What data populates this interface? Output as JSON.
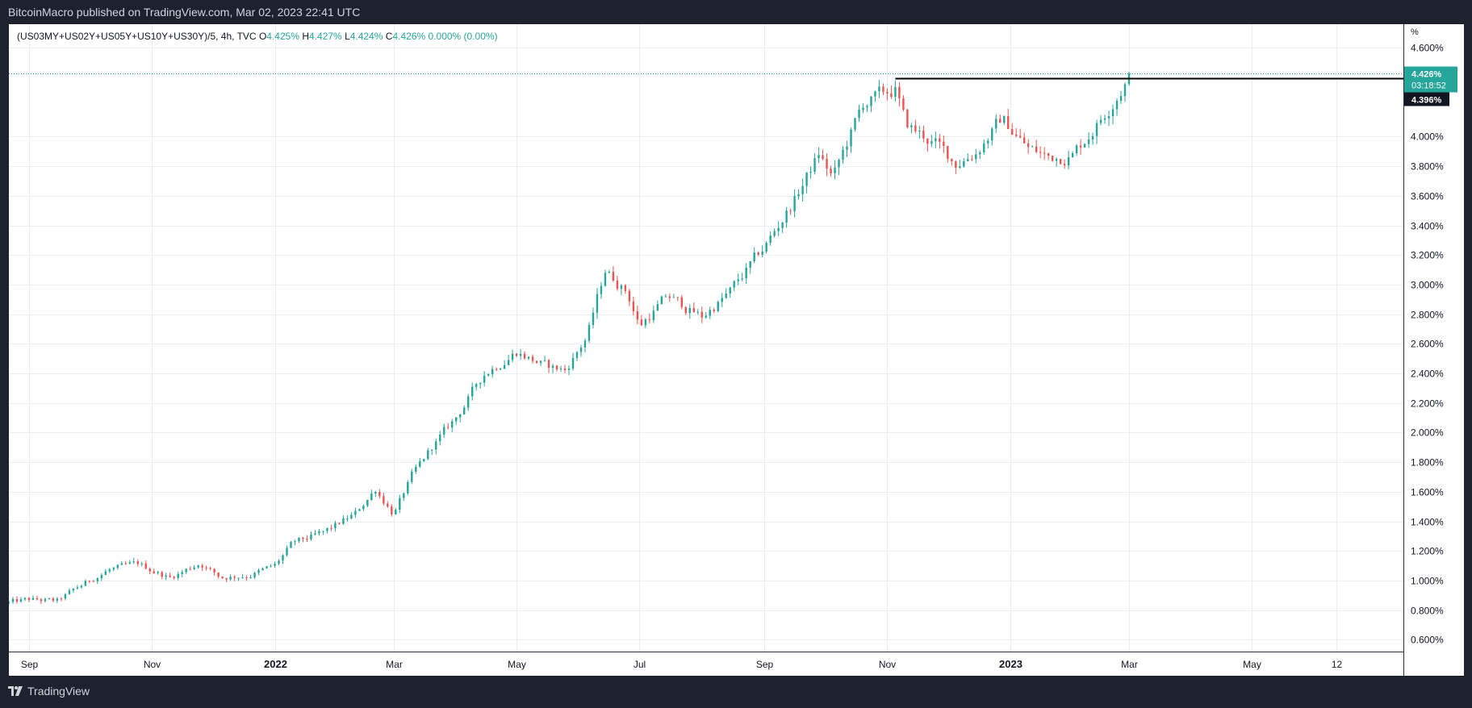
{
  "header": {
    "published_text": "BitcoinMacro published on TradingView.com, Mar 02, 2023 22:41 UTC"
  },
  "legend": {
    "symbol": "(US03MY+US02Y+US05Y+US10Y+US30Y)/5, 4h, TVC",
    "open_label": "O",
    "open_value": "4.425%",
    "high_label": "H",
    "high_value": "4.427%",
    "low_label": "L",
    "low_value": "4.424%",
    "close_label": "C",
    "close_value": "4.426%",
    "change_value": "0.000% (0.00%)"
  },
  "price_scale": {
    "unit": "%",
    "last_price_label": "4.426%",
    "countdown_label": "03:18:52",
    "level_label": "4.396%"
  },
  "footer": {
    "brand": "TradingView"
  },
  "colors": {
    "up": "#26a69a",
    "down": "#ef5350",
    "accent": "#26a69a",
    "grid": "#e9eef3",
    "level_line": "#000000"
  },
  "chart_data": {
    "type": "candlestick",
    "unit": "%",
    "x_ticks": [
      "Sep",
      "Nov",
      "2022",
      "Mar",
      "May",
      "Jul",
      "Sep",
      "Nov",
      "2023",
      "Mar",
      "May",
      "12"
    ],
    "y_ticks": [
      "0.600%",
      "0.800%",
      "1.000%",
      "1.200%",
      "1.400%",
      "1.600%",
      "1.800%",
      "2.000%",
      "2.200%",
      "2.400%",
      "2.600%",
      "2.800%",
      "3.000%",
      "3.200%",
      "3.400%",
      "3.600%",
      "3.800%",
      "4.000%",
      "4.600%"
    ],
    "ylim": [
      0.52,
      4.76
    ],
    "series_path": [
      [
        "2021-08-22",
        0.85
      ],
      [
        "2021-09-01",
        0.87
      ],
      [
        "2021-09-15",
        0.86
      ],
      [
        "2021-09-25",
        0.95
      ],
      [
        "2021-10-10",
        1.07
      ],
      [
        "2021-10-25",
        1.11
      ],
      [
        "2021-11-10",
        1.02
      ],
      [
        "2021-11-25",
        1.12
      ],
      [
        "2021-12-05",
        1.02
      ],
      [
        "2021-12-20",
        1.04
      ],
      [
        "2022-01-01",
        1.1
      ],
      [
        "2022-01-10",
        1.25
      ],
      [
        "2022-01-25",
        1.32
      ],
      [
        "2022-02-10",
        1.45
      ],
      [
        "2022-02-20",
        1.62
      ],
      [
        "2022-03-01",
        1.45
      ],
      [
        "2022-03-10",
        1.7
      ],
      [
        "2022-03-20",
        1.9
      ],
      [
        "2022-04-01",
        2.1
      ],
      [
        "2022-04-15",
        2.4
      ],
      [
        "2022-05-01",
        2.55
      ],
      [
        "2022-05-15",
        2.45
      ],
      [
        "2022-05-25",
        2.42
      ],
      [
        "2022-06-05",
        2.65
      ],
      [
        "2022-06-14",
        3.1
      ],
      [
        "2022-06-25",
        2.95
      ],
      [
        "2022-07-01",
        2.72
      ],
      [
        "2022-07-15",
        2.92
      ],
      [
        "2022-08-01",
        2.78
      ],
      [
        "2022-08-15",
        2.95
      ],
      [
        "2022-09-01",
        3.25
      ],
      [
        "2022-09-15",
        3.55
      ],
      [
        "2022-09-28",
        3.88
      ],
      [
        "2022-10-05",
        3.72
      ],
      [
        "2022-10-20",
        4.22
      ],
      [
        "2022-11-05",
        4.32
      ],
      [
        "2022-11-10",
        4.08
      ],
      [
        "2022-11-25",
        3.95
      ],
      [
        "2022-12-05",
        3.82
      ],
      [
        "2022-12-15",
        3.9
      ],
      [
        "2022-12-28",
        4.12
      ],
      [
        "2023-01-10",
        3.92
      ],
      [
        "2023-01-20",
        3.86
      ],
      [
        "2023-02-01",
        3.88
      ],
      [
        "2023-02-15",
        4.12
      ],
      [
        "2023-03-02",
        4.43
      ]
    ],
    "horizontal_level": 4.396,
    "last_price": 4.426
  }
}
